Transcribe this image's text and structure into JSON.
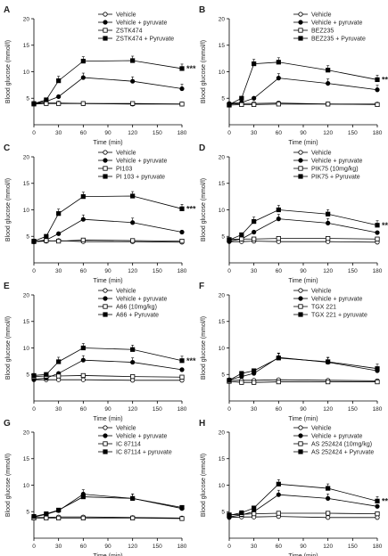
{
  "chart_data": [
    {
      "type": "line",
      "panel": "A",
      "xlabel": "Time (min)",
      "ylabel": "Blood glucose (mmol/l)",
      "xlim": [
        0,
        180
      ],
      "ylim": [
        0,
        20
      ],
      "xticks": [
        0,
        30,
        60,
        90,
        120,
        150,
        180
      ],
      "yticks": [
        5,
        10,
        15,
        20
      ],
      "x": [
        0,
        15,
        30,
        60,
        120,
        180
      ],
      "series": [
        {
          "name": "Vehicle",
          "marker": "open-circle",
          "values": [
            4.0,
            4.1,
            4.1,
            4.0,
            3.9,
            3.9
          ]
        },
        {
          "name": "Vehicle + pyruvate",
          "marker": "filled-circle",
          "values": [
            4.0,
            4.4,
            5.3,
            8.9,
            8.2,
            6.8
          ]
        },
        {
          "name": "ZSTK474",
          "marker": "open-square",
          "values": [
            3.9,
            4.0,
            4.0,
            4.0,
            4.0,
            3.9
          ]
        },
        {
          "name": "ZSTK474 + Pyruvate",
          "marker": "filled-square",
          "values": [
            4.0,
            4.7,
            8.3,
            12.0,
            12.1,
            10.6
          ]
        }
      ],
      "annotation": "***"
    },
    {
      "type": "line",
      "panel": "B",
      "xlabel": "Time (min)",
      "ylabel": "Blood glucose (mmol/l)",
      "xlim": [
        0,
        180
      ],
      "ylim": [
        0,
        20
      ],
      "xticks": [
        0,
        30,
        60,
        90,
        120,
        150,
        180
      ],
      "yticks": [
        5,
        10,
        15,
        20
      ],
      "x": [
        0,
        15,
        30,
        60,
        120,
        180
      ],
      "series": [
        {
          "name": "Vehicle",
          "marker": "open-circle",
          "values": [
            3.9,
            4.0,
            4.0,
            4.1,
            3.9,
            3.9
          ]
        },
        {
          "name": "Vehicle + pyruvate",
          "marker": "filled-circle",
          "values": [
            4.0,
            4.2,
            5.0,
            8.8,
            7.8,
            6.6
          ]
        },
        {
          "name": "BEZ235",
          "marker": "open-square",
          "values": [
            3.7,
            3.8,
            3.8,
            3.9,
            3.9,
            3.8
          ]
        },
        {
          "name": "BEZ235 + Pyruvate",
          "marker": "filled-square",
          "values": [
            3.8,
            5.0,
            11.5,
            11.8,
            10.3,
            8.5
          ]
        }
      ],
      "annotation": "***"
    },
    {
      "type": "line",
      "panel": "C",
      "xlabel": "Time (min)",
      "ylabel": "Blood glucose (mmol/l)",
      "xlim": [
        0,
        180
      ],
      "ylim": [
        0,
        20
      ],
      "xticks": [
        0,
        30,
        60,
        90,
        120,
        150,
        180
      ],
      "yticks": [
        5,
        10,
        15,
        20
      ],
      "x": [
        0,
        15,
        30,
        60,
        120,
        180
      ],
      "series": [
        {
          "name": "Vehicle",
          "marker": "open-circle",
          "values": [
            4.0,
            4.1,
            4.2,
            4.0,
            4.0,
            3.9
          ]
        },
        {
          "name": "Vehicle + pyruvate",
          "marker": "filled-circle",
          "values": [
            4.0,
            4.3,
            5.5,
            8.2,
            7.6,
            5.8
          ]
        },
        {
          "name": "PI103",
          "marker": "open-square",
          "values": [
            4.0,
            4.2,
            4.1,
            4.3,
            4.2,
            4.1
          ]
        },
        {
          "name": "PI 103 + pyruvate",
          "marker": "filled-square",
          "values": [
            4.1,
            5.0,
            9.3,
            12.5,
            12.6,
            10.2
          ]
        }
      ],
      "annotation": "***"
    },
    {
      "type": "line",
      "panel": "D",
      "xlabel": "Time (min)",
      "ylabel": "Blood glucose (mmol/l)",
      "xlim": [
        0,
        180
      ],
      "ylim": [
        0,
        20
      ],
      "xticks": [
        0,
        30,
        60,
        90,
        120,
        150,
        180
      ],
      "yticks": [
        5,
        10,
        15,
        20
      ],
      "x": [
        0,
        15,
        30,
        60,
        120,
        180
      ],
      "series": [
        {
          "name": "Vehicle",
          "marker": "open-circle",
          "values": [
            4.0,
            4.0,
            4.1,
            4.0,
            4.0,
            3.9
          ]
        },
        {
          "name": "Vehicle + pyruvate",
          "marker": "filled-circle",
          "values": [
            4.1,
            4.5,
            5.8,
            8.3,
            7.5,
            5.7
          ]
        },
        {
          "name": "PIK75 (10mg/kg)",
          "marker": "open-square",
          "values": [
            4.4,
            4.5,
            4.5,
            4.6,
            4.6,
            4.5
          ]
        },
        {
          "name": "PIK75 + Pyruvate",
          "marker": "filled-square",
          "values": [
            4.3,
            5.3,
            7.8,
            10.0,
            9.2,
            7.1
          ]
        }
      ],
      "annotation": "***"
    },
    {
      "type": "line",
      "panel": "E",
      "xlabel": "Time (min)",
      "ylabel": "Blood glucose (mmol/l)",
      "xlim": [
        0,
        180
      ],
      "ylim": [
        0,
        20
      ],
      "xticks": [
        0,
        30,
        60,
        90,
        120,
        150,
        180
      ],
      "yticks": [
        5,
        10,
        15,
        20
      ],
      "x": [
        0,
        15,
        30,
        60,
        120,
        180
      ],
      "series": [
        {
          "name": "Vehicle",
          "marker": "open-circle",
          "values": [
            4.0,
            4.0,
            4.0,
            4.0,
            3.9,
            3.9
          ]
        },
        {
          "name": "Vehicle + pyruvate",
          "marker": "filled-circle",
          "values": [
            4.1,
            4.3,
            5.2,
            7.7,
            7.3,
            5.9
          ]
        },
        {
          "name": "A66 (10mg/kg)",
          "marker": "open-square",
          "values": [
            4.6,
            4.7,
            4.7,
            4.8,
            4.6,
            4.5
          ]
        },
        {
          "name": "A66 + Pyruvate",
          "marker": "filled-square",
          "values": [
            4.8,
            5.0,
            7.4,
            10.0,
            9.7,
            7.6
          ]
        }
      ],
      "annotation": "***"
    },
    {
      "type": "line",
      "panel": "F",
      "xlabel": "Time (min)",
      "ylabel": "Blood glucose (mmol/l)",
      "xlim": [
        0,
        180
      ],
      "ylim": [
        0,
        20
      ],
      "xticks": [
        0,
        30,
        60,
        90,
        120,
        150,
        180
      ],
      "yticks": [
        5,
        10,
        15,
        20
      ],
      "x": [
        0,
        15,
        30,
        60,
        120,
        180
      ],
      "series": [
        {
          "name": "Vehicle",
          "marker": "open-circle",
          "values": [
            3.9,
            3.9,
            3.9,
            4.0,
            3.9,
            3.8
          ]
        },
        {
          "name": "Vehicle + pyruvate",
          "marker": "filled-circle",
          "values": [
            4.0,
            4.6,
            5.2,
            8.2,
            7.3,
            5.7
          ]
        },
        {
          "name": "TGX 221",
          "marker": "open-square",
          "values": [
            3.7,
            3.5,
            3.5,
            3.6,
            3.6,
            3.6
          ]
        },
        {
          "name": "TGX 221 + pyruvate",
          "marker": "filled-square",
          "values": [
            3.9,
            5.2,
            5.7,
            8.1,
            7.4,
            6.1
          ]
        }
      ],
      "annotation": ""
    },
    {
      "type": "line",
      "panel": "G",
      "xlabel": "Time (min)",
      "ylabel": "Blood glucose (mmol/l)",
      "xlim": [
        0,
        180
      ],
      "ylim": [
        0,
        20
      ],
      "xticks": [
        0,
        30,
        60,
        90,
        120,
        150,
        180
      ],
      "yticks": [
        5,
        10,
        15,
        20
      ],
      "x": [
        0,
        15,
        30,
        60,
        120,
        180
      ],
      "series": [
        {
          "name": "Vehicle",
          "marker": "open-circle",
          "values": [
            3.9,
            3.9,
            4.0,
            4.0,
            3.9,
            3.8
          ]
        },
        {
          "name": "Vehicle + pyruvate",
          "marker": "filled-circle",
          "values": [
            4.0,
            4.5,
            5.2,
            8.3,
            7.5,
            5.6
          ]
        },
        {
          "name": "IC 87114",
          "marker": "open-square",
          "values": [
            3.8,
            3.8,
            3.8,
            3.8,
            3.8,
            3.7
          ]
        },
        {
          "name": "IC 87114 + pyruvate",
          "marker": "filled-square",
          "values": [
            4.1,
            4.6,
            5.3,
            7.8,
            7.5,
            5.8
          ]
        }
      ],
      "annotation": ""
    },
    {
      "type": "line",
      "panel": "H",
      "xlabel": "Time (min)",
      "ylabel": "Blood glucose (mmol/l)",
      "xlim": [
        0,
        180
      ],
      "ylim": [
        0,
        20
      ],
      "xticks": [
        0,
        30,
        60,
        90,
        120,
        150,
        180
      ],
      "yticks": [
        5,
        10,
        15,
        20
      ],
      "x": [
        0,
        15,
        30,
        60,
        120,
        180
      ],
      "series": [
        {
          "name": "Vehicle",
          "marker": "open-circle",
          "values": [
            3.9,
            4.0,
            4.0,
            4.1,
            3.9,
            3.9
          ]
        },
        {
          "name": "Vehicle + pyruvate",
          "marker": "filled-circle",
          "values": [
            4.0,
            4.4,
            5.0,
            8.2,
            7.5,
            6.0
          ]
        },
        {
          "name": "AS 252424 (10mg/kg)",
          "marker": "open-square",
          "values": [
            4.4,
            4.5,
            4.6,
            4.7,
            4.7,
            4.6
          ]
        },
        {
          "name": "AS 252424 + Pyruvate",
          "marker": "filled-square",
          "values": [
            4.3,
            4.8,
            5.7,
            10.2,
            9.4,
            7.0
          ]
        }
      ],
      "annotation": "**"
    }
  ]
}
